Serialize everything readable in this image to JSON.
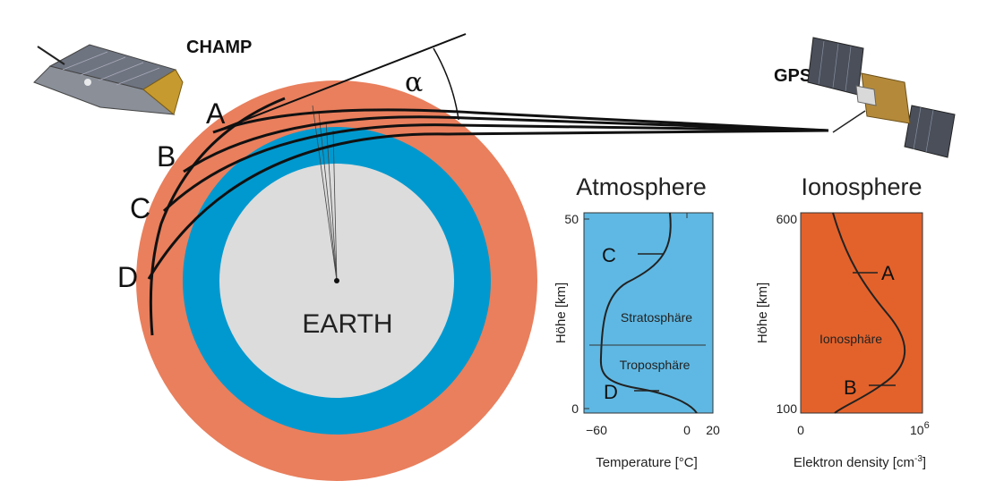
{
  "labels": {
    "champ": "CHAMP",
    "gps": "GPS",
    "alpha": "α",
    "earth": "EARTH",
    "points": [
      "A",
      "B",
      "C",
      "D"
    ]
  },
  "colors": {
    "ionosphere_ring": "#e97f5d",
    "atmosphere_ring": "#0099cf",
    "earth": "#dcdcdc",
    "atmosphere_panel": "#5fb8e3",
    "ionosphere_panel": "#e3622b"
  },
  "icons": {
    "champ_satellite": "champ-satellite-icon",
    "gps_satellite": "gps-satellite-icon"
  },
  "atmosphere_panel": {
    "title": "Atmosphere",
    "ylabel": "Höhe [km]",
    "xlabel": "Temperature [°C]",
    "y_ticks": [
      "50",
      "0"
    ],
    "x_ticks": [
      "−60",
      "0",
      "20"
    ],
    "layer_upper": "Stratosphäre",
    "layer_lower": "Troposphäre",
    "markers": [
      "C",
      "D"
    ]
  },
  "ionosphere_panel": {
    "title": "Ionosphere",
    "ylabel": "Höhe [km]",
    "xlabel_main": "Elektron density [cm",
    "xlabel_sup": "-3",
    "xlabel_end": "]",
    "y_ticks": [
      "600",
      "100"
    ],
    "x_tick_zero": "0",
    "x_tick_max_base": "10",
    "x_tick_max_exp": "6",
    "layer": "Ionosphäre",
    "markers": [
      "A",
      "B"
    ]
  },
  "chart_data": [
    {
      "type": "line",
      "title": "Atmosphere",
      "xlabel": "Temperature [°C]",
      "ylabel": "Höhe [km]",
      "xlim": [
        -70,
        20
      ],
      "ylim": [
        0,
        50
      ],
      "series": [
        {
          "x": [
            12,
            5,
            -10,
            -28,
            -48,
            -55,
            -57,
            -56,
            -52,
            -40,
            -25,
            -14,
            -8,
            -6,
            -7
          ],
          "y": [
            0,
            3,
            6,
            9,
            12,
            15,
            20,
            25,
            28,
            32,
            36,
            40,
            44,
            47,
            50
          ]
        }
      ],
      "annotations": [
        {
          "text": "C",
          "y": 40
        },
        {
          "text": "D",
          "y": 6
        },
        {
          "text": "Stratosphäre"
        },
        {
          "text": "Troposphäre"
        }
      ]
    },
    {
      "type": "line",
      "title": "Ionosphere",
      "xlabel": "Elektron density [cm-3]",
      "ylabel": "Höhe [km]",
      "ylim": [
        100,
        600
      ],
      "series": [
        {
          "x": [
            0.25,
            0.35,
            0.5,
            0.63,
            0.72,
            0.74,
            0.7,
            0.6,
            0.47,
            0.35,
            0.25,
            0.2
          ],
          "y": [
            100,
            130,
            160,
            200,
            240,
            280,
            330,
            380,
            430,
            480,
            540,
            600
          ]
        }
      ],
      "annotations": [
        {
          "text": "A",
          "y": 450
        },
        {
          "text": "B",
          "y": 160
        },
        {
          "text": "Ionosphäre"
        }
      ]
    }
  ]
}
